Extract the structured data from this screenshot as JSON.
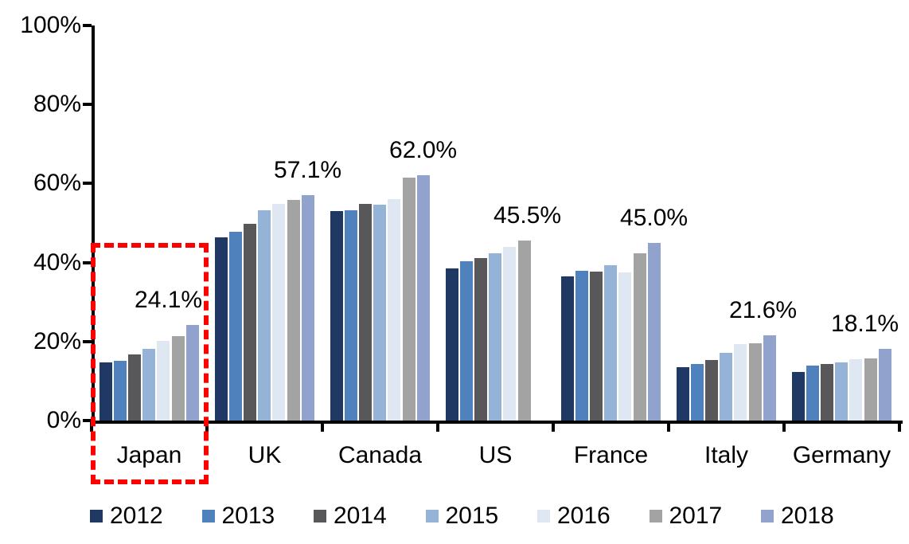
{
  "chart_data": {
    "type": "bar",
    "grouping": "grouped",
    "title": "",
    "xlabel": "",
    "ylabel": "",
    "categories": [
      "Japan",
      "UK",
      "Canada",
      "US",
      "France",
      "Italy",
      "Germany"
    ],
    "series": [
      {
        "name": "2012",
        "color": "#1F3864",
        "values": [
          14.8,
          46.3,
          53.0,
          38.6,
          36.5,
          13.6,
          12.4
        ]
      },
      {
        "name": "2013",
        "color": "#4F81BD",
        "values": [
          15.1,
          47.7,
          53.3,
          40.4,
          37.9,
          14.4,
          13.9
        ]
      },
      {
        "name": "2014",
        "color": "#58585A",
        "values": [
          16.7,
          49.9,
          54.8,
          41.2,
          37.8,
          15.4,
          14.3
        ]
      },
      {
        "name": "2015",
        "color": "#95B3D7",
        "values": [
          18.1,
          53.2,
          54.6,
          42.4,
          39.4,
          17.1,
          14.8
        ]
      },
      {
        "name": "2016",
        "color": "#DEE7F2",
        "values": [
          20.1,
          54.9,
          56.1,
          43.9,
          37.5,
          19.3,
          15.5
        ]
      },
      {
        "name": "2017",
        "color": "#A3A3A3",
        "values": [
          21.3,
          55.9,
          61.4,
          45.5,
          42.4,
          19.5,
          15.7
        ]
      },
      {
        "name": "2018",
        "color": "#91A3CD",
        "values": [
          24.1,
          57.1,
          62.0,
          null,
          45.0,
          21.6,
          18.1
        ]
      }
    ],
    "data_labels": [
      {
        "category": "Japan",
        "text": "24.1%",
        "anchor_series": "2018",
        "dx": -30
      },
      {
        "category": "UK",
        "text": "57.1%",
        "anchor_series": "2018",
        "dx": 0
      },
      {
        "category": "Canada",
        "text": "62.0%",
        "anchor_series": "2018",
        "dx": 0
      },
      {
        "category": "US",
        "text": "45.5%",
        "anchor_series": "2017",
        "dx": 4
      },
      {
        "category": "France",
        "text": "45.0%",
        "anchor_series": "2018",
        "dx": 0
      },
      {
        "category": "Italy",
        "text": "21.6%",
        "anchor_series": "2018",
        "dx": -8
      },
      {
        "category": "Germany",
        "text": "18.1%",
        "anchor_series": "2018",
        "dx": -25
      }
    ],
    "y_axis": {
      "tick_labels": [
        "100%",
        "80%",
        "60%",
        "40%",
        "20%",
        "0%"
      ],
      "tick_values": [
        100,
        80,
        60,
        40,
        20,
        0
      ],
      "ylim": [
        0,
        100
      ],
      "grid": false
    },
    "legend": {
      "position": "bottom",
      "entries": [
        "2012",
        "2013",
        "2014",
        "2015",
        "2016",
        "2017",
        "2018"
      ]
    },
    "highlight": {
      "category": "Japan",
      "style": "dashed-rectangle",
      "color": "#FE0000"
    }
  }
}
